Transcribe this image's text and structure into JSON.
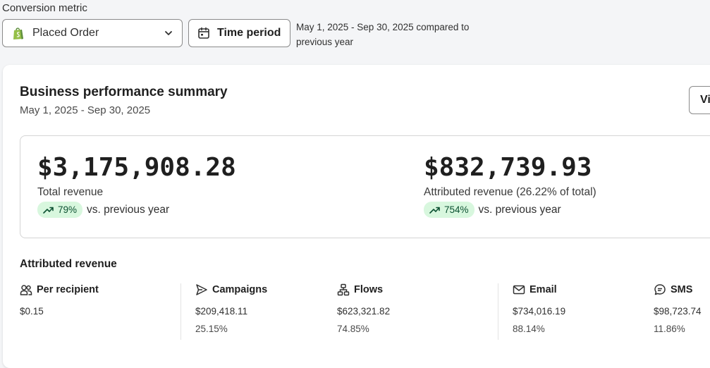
{
  "header": {
    "metric_label": "Conversion metric",
    "metric_select": {
      "value": "Placed Order",
      "icon": "shopify-bag-icon"
    },
    "time_button": {
      "label": "Time period",
      "icon": "calendar-icon"
    },
    "range_text": "May 1, 2025 - Sep 30, 2025 compared to previous year"
  },
  "card": {
    "title": "Business performance summary",
    "subtitle": "May 1, 2025 - Sep 30, 2025",
    "view_button": "Vi",
    "metrics": [
      {
        "value": "$3,175,908.28",
        "label": "Total revenue",
        "change": "79%",
        "compare": "vs. previous year"
      },
      {
        "value": "$832,739.93",
        "label": "Attributed revenue (26.22% of total)",
        "change": "754%",
        "compare": "vs. previous year"
      }
    ],
    "attributed_title": "Attributed revenue",
    "columns": [
      {
        "name": "Per recipient",
        "icon": "people-icon",
        "value": "$0.15",
        "pct": ""
      },
      {
        "name": "Campaigns",
        "icon": "send-icon",
        "value": "$209,418.11",
        "pct": "25.15%"
      },
      {
        "name": "Flows",
        "icon": "flow-icon",
        "value": "$623,321.82",
        "pct": "74.85%"
      },
      {
        "name": "Email",
        "icon": "email-icon",
        "value": "$734,016.19",
        "pct": "88.14%"
      },
      {
        "name": "SMS",
        "icon": "sms-icon",
        "value": "$98,723.74",
        "pct": "11.86%"
      }
    ]
  },
  "colors": {
    "badge_bg": "#d8f7de",
    "badge_text": "#0c5132",
    "shopify_green": "#95bf47"
  }
}
